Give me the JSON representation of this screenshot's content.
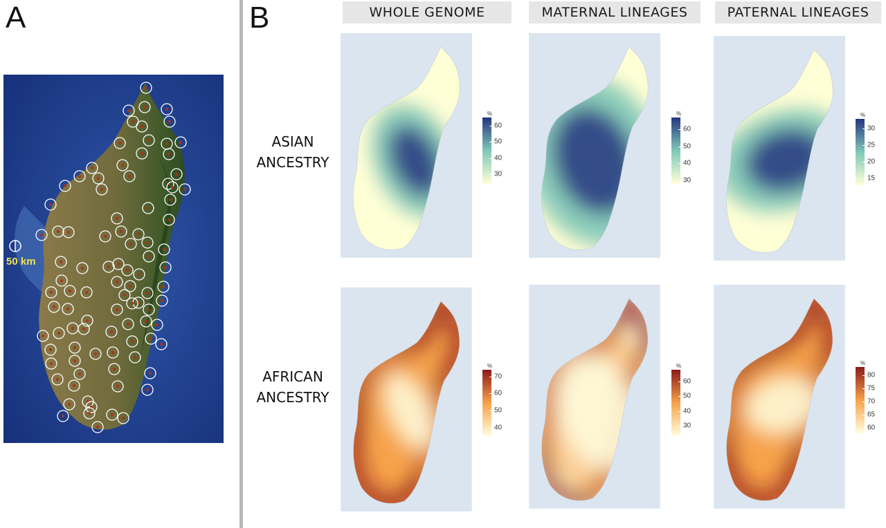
{
  "panel_a": {
    "letter": "A",
    "scale_label": "50 km",
    "site_count": 96
  },
  "panel_b": {
    "letter": "B",
    "columns": [
      "WHOLE GENOME",
      "MATERNAL LINEAGES",
      "PATERNAL LINEAGES"
    ],
    "rows": [
      {
        "label_line1": "ASIAN",
        "label_line2": "ANCESTRY"
      },
      {
        "label_line1": "AFRICAN",
        "label_line2": "ANCESTRY"
      }
    ],
    "legend_unit": "%",
    "legends": [
      [
        {
          "ticks": [
            "60",
            "50",
            "40",
            "30"
          ],
          "min": 24,
          "max": 65,
          "palette": "blue"
        },
        {
          "ticks": [
            "60",
            "50",
            "40",
            "30"
          ],
          "min": 28,
          "max": 67,
          "palette": "blue"
        },
        {
          "ticks": [
            "30",
            "25",
            "20",
            "15"
          ],
          "min": 13,
          "max": 33,
          "palette": "blue"
        }
      ],
      [
        {
          "ticks": [
            "70",
            "60",
            "50",
            "40"
          ],
          "min": 35,
          "max": 74,
          "palette": "red"
        },
        {
          "ticks": [
            "60",
            "50",
            "40",
            "30"
          ],
          "min": 23,
          "max": 68,
          "palette": "red"
        },
        {
          "ticks": [
            "80",
            "75",
            "70",
            "65",
            "60"
          ],
          "min": 58,
          "max": 83,
          "palette": "red"
        }
      ]
    ],
    "colors": {
      "blue_low": "#ffffd6",
      "blue_mid": "#7fc8b8",
      "blue_high": "#26357f",
      "red_low": "#ffffe0",
      "red_mid": "#f6a24a",
      "red_high": "#8b1a1a",
      "sea": "#dbe5ef",
      "satellite_sea": "#1f3f8f"
    }
  }
}
